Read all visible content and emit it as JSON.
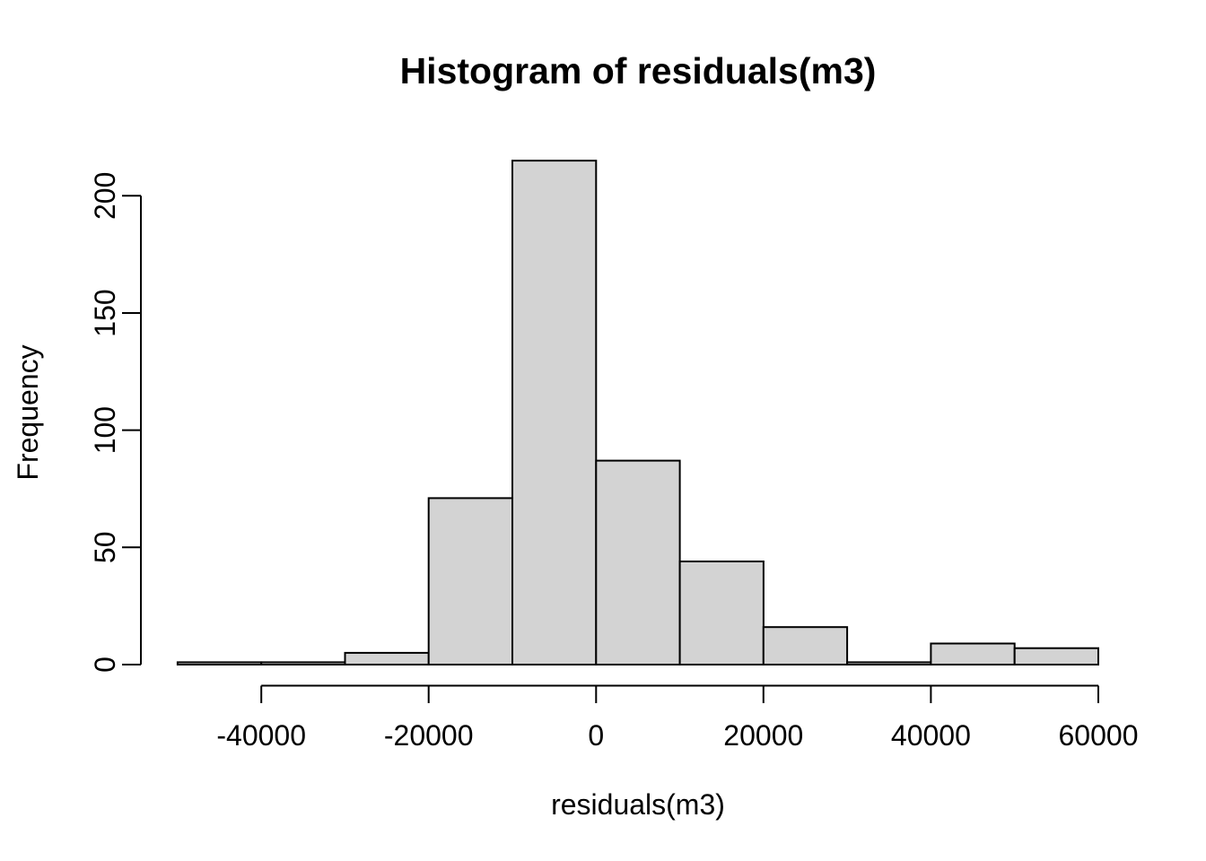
{
  "title": "Histogram of residuals(m3)",
  "chart_data": {
    "type": "bar",
    "subtype": "histogram",
    "title": "Histogram of residuals(m3)",
    "xlabel": "residuals(m3)",
    "ylabel": "Frequency",
    "bin_start": -50000,
    "bin_width": 10000,
    "bin_edges": [
      -50000,
      -40000,
      -30000,
      -20000,
      -10000,
      0,
      10000,
      20000,
      30000,
      40000,
      50000,
      60000
    ],
    "counts": [
      1,
      1,
      5,
      71,
      215,
      87,
      44,
      16,
      1,
      9,
      7
    ],
    "x_ticks": [
      -40000,
      -20000,
      0,
      20000,
      40000,
      60000
    ],
    "x_tick_labels": [
      "-40000",
      "-20000",
      "0",
      "20000",
      "40000",
      "60000"
    ],
    "y_ticks": [
      0,
      50,
      100,
      150,
      200
    ],
    "y_tick_labels": [
      "0",
      "50",
      "100",
      "150",
      "200"
    ],
    "xlim": [
      -50000,
      60000
    ],
    "ylim": [
      0,
      215
    ],
    "grid": "off",
    "legend": "none",
    "bar_fill": "#d3d3d3",
    "bar_stroke": "#000000",
    "axis_color": "#000000",
    "background": "#ffffff"
  }
}
